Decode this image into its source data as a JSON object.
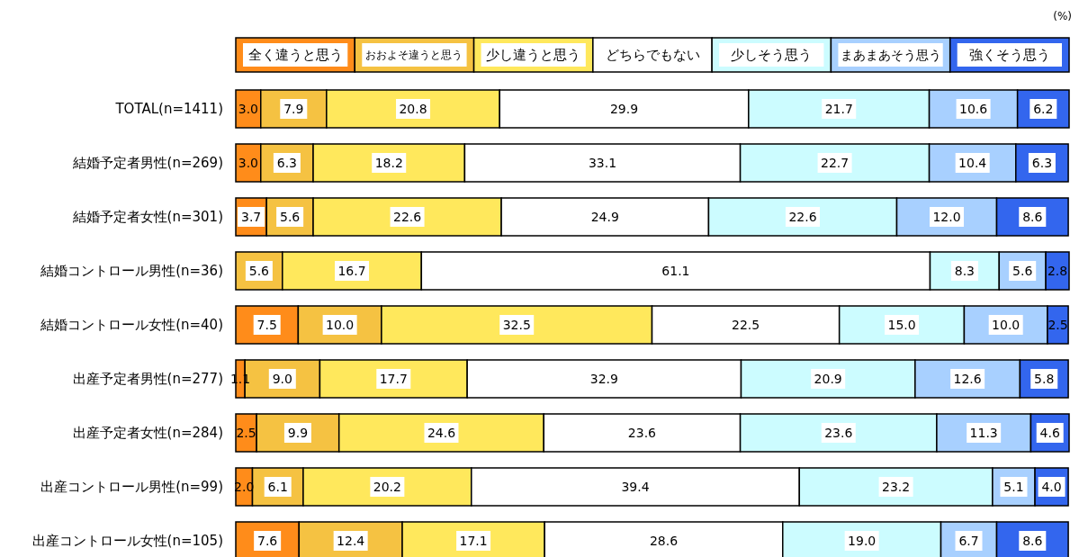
{
  "chart_data": {
    "type": "bar",
    "orientation": "horizontal",
    "stacked": true,
    "legend": "top",
    "annotations": [
      "(%)"
    ],
    "categories": [
      "TOTAL(n=1411)",
      "結婚予定者男性(n=269)",
      "結婚予定者女性(n=301)",
      "結婚コントロール男性(n=36)",
      "結婚コントロール女性(n=40)",
      "出産予定者男性(n=277)",
      "出産予定者女性(n=284)",
      "出産コントロール男性(n=99)",
      "出産コントロール女性(n=105)"
    ],
    "series": [
      {
        "name": "全く違うと思う",
        "color": "#ff8c1a",
        "values": [
          3.0,
          3.0,
          3.7,
          null,
          7.5,
          1.1,
          2.5,
          2.0,
          7.6
        ],
        "value_labels": [
          "3.0",
          "3.0",
          "3.7",
          null,
          "7.5",
          "1.1",
          "2.5",
          "2.0",
          "7.6"
        ]
      },
      {
        "name": "おおよそ違うと思う",
        "color": "#f5c242",
        "values": [
          7.9,
          6.3,
          5.6,
          5.6,
          10.0,
          9.0,
          9.9,
          6.1,
          12.4
        ],
        "value_labels": [
          "7.9",
          "6.3",
          "5.6",
          "5.6",
          "10.0",
          "9.0",
          "9.9",
          "6.1",
          "12.4"
        ]
      },
      {
        "name": "少し違うと思う",
        "color": "#ffe85c",
        "values": [
          20.8,
          18.2,
          22.6,
          16.7,
          32.5,
          17.7,
          24.6,
          20.2,
          17.1
        ],
        "value_labels": [
          "20.8",
          "18.2",
          "22.6",
          "16.7",
          "32.5",
          "17.7",
          "24.6",
          "20.2",
          "17.1"
        ]
      },
      {
        "name": "どちらでもない",
        "color": "#ffffff",
        "values": [
          29.9,
          33.1,
          24.9,
          61.1,
          22.5,
          32.9,
          23.6,
          39.4,
          28.6
        ],
        "value_labels": [
          "29.9",
          "33.1",
          "24.9",
          "61.1",
          "22.5",
          "32.9",
          "23.6",
          "39.4",
          "28.6"
        ]
      },
      {
        "name": "少しそう思う",
        "color": "#ccfcff",
        "values": [
          21.7,
          22.7,
          22.6,
          8.3,
          15.0,
          20.9,
          23.6,
          23.2,
          19.0
        ],
        "value_labels": [
          "21.7",
          "22.7",
          "22.6",
          "8.3",
          "15.0",
          "20.9",
          "23.6",
          "23.2",
          "19.0"
        ]
      },
      {
        "name": "まあまあそう思う",
        "color": "#a8d0ff",
        "values": [
          10.6,
          10.4,
          12.0,
          5.6,
          10.0,
          12.6,
          11.3,
          5.1,
          6.7
        ],
        "value_labels": [
          "10.6",
          "10.4",
          "12.0",
          "5.6",
          "10.0",
          "12.6",
          "11.3",
          "5.1",
          "6.7"
        ]
      },
      {
        "name": "強くそう思う",
        "color": "#3366ee",
        "values": [
          6.2,
          6.3,
          8.6,
          2.8,
          2.5,
          5.8,
          4.6,
          4.0,
          8.6
        ],
        "value_labels": [
          "6.2",
          "6.3",
          "8.6",
          "2.8",
          "2.5",
          "5.8",
          "4.6",
          "4.0",
          "8.6"
        ]
      }
    ]
  }
}
